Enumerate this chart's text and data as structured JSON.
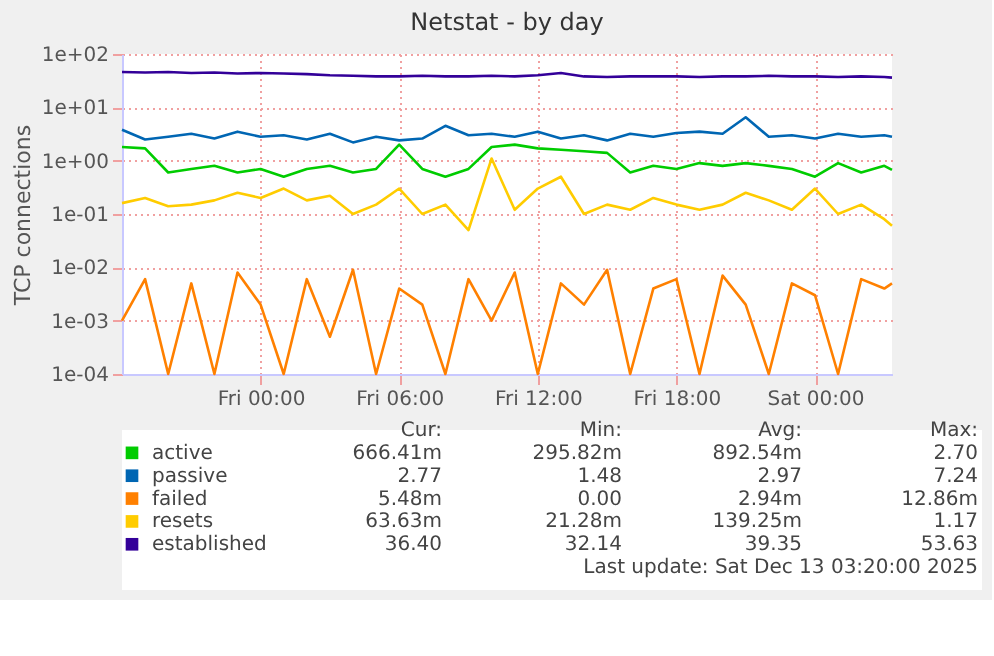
{
  "chart_data": {
    "type": "line",
    "title": "Netstat - by day",
    "ylabel": "TCP connections",
    "x": [
      "2025-12-11T18:00",
      "2025-12-11T19:00",
      "2025-12-11T20:00",
      "2025-12-11T21:00",
      "2025-12-11T22:00",
      "2025-12-11T23:00",
      "2025-12-12T00:00",
      "2025-12-12T01:00",
      "2025-12-12T02:00",
      "2025-12-12T03:00",
      "2025-12-12T04:00",
      "2025-12-12T05:00",
      "2025-12-12T06:00",
      "2025-12-12T07:00",
      "2025-12-12T08:00",
      "2025-12-12T09:00",
      "2025-12-12T10:00",
      "2025-12-12T11:00",
      "2025-12-12T12:00",
      "2025-12-12T13:00",
      "2025-12-12T14:00",
      "2025-12-12T15:00",
      "2025-12-12T16:00",
      "2025-12-12T17:00",
      "2025-12-12T18:00",
      "2025-12-12T19:00",
      "2025-12-12T20:00",
      "2025-12-12T21:00",
      "2025-12-12T22:00",
      "2025-12-12T23:00",
      "2025-12-13T00:00",
      "2025-12-13T01:00",
      "2025-12-13T02:00",
      "2025-12-13T03:00",
      "2025-12-13T03:20"
    ],
    "series": [
      {
        "name": "active",
        "color": "#00cc00",
        "values": [
          1.8,
          1.7,
          0.6,
          0.7,
          0.8,
          0.6,
          0.7,
          0.5,
          0.7,
          0.8,
          0.6,
          0.7,
          2.0,
          0.7,
          0.5,
          0.7,
          1.8,
          2.0,
          1.7,
          1.6,
          1.5,
          1.4,
          0.6,
          0.8,
          0.7,
          0.9,
          0.8,
          0.9,
          0.8,
          0.7,
          0.5,
          0.9,
          0.6,
          0.8,
          0.67
        ]
      },
      {
        "name": "passive",
        "color": "#0066b3",
        "values": [
          3.8,
          2.5,
          2.8,
          3.2,
          2.6,
          3.5,
          2.8,
          3.0,
          2.5,
          3.2,
          2.2,
          2.8,
          2.4,
          2.6,
          4.5,
          3.0,
          3.2,
          2.8,
          3.5,
          2.6,
          3.0,
          2.4,
          3.2,
          2.8,
          3.3,
          3.5,
          3.2,
          6.5,
          2.8,
          3.0,
          2.6,
          3.2,
          2.8,
          3.0,
          2.8
        ]
      },
      {
        "name": "failed",
        "color": "#ff8000",
        "values": [
          0.001,
          0.006,
          0.0001,
          0.005,
          0.0001,
          0.008,
          0.002,
          0.0001,
          0.006,
          0.0005,
          0.009,
          0.0001,
          0.004,
          0.002,
          0.0001,
          0.006,
          0.001,
          0.008,
          0.0001,
          0.005,
          0.002,
          0.009,
          0.0001,
          0.004,
          0.006,
          0.0001,
          0.007,
          0.002,
          0.0001,
          0.005,
          0.003,
          0.0001,
          0.006,
          0.004,
          0.005
        ]
      },
      {
        "name": "resets",
        "color": "#ffcc00",
        "values": [
          0.16,
          0.2,
          0.14,
          0.15,
          0.18,
          0.25,
          0.2,
          0.3,
          0.18,
          0.22,
          0.1,
          0.15,
          0.3,
          0.1,
          0.15,
          0.05,
          1.1,
          0.12,
          0.3,
          0.5,
          0.1,
          0.15,
          0.12,
          0.2,
          0.15,
          0.12,
          0.15,
          0.25,
          0.18,
          0.12,
          0.3,
          0.1,
          0.15,
          0.08,
          0.06
        ]
      },
      {
        "name": "established",
        "color": "#330099",
        "values": [
          46,
          45,
          46,
          44,
          45,
          43,
          44,
          43,
          42,
          40,
          39,
          38,
          38,
          39,
          38,
          38,
          39,
          38,
          40,
          44,
          38,
          37,
          38,
          38,
          38,
          37,
          38,
          38,
          39,
          38,
          38,
          37,
          38,
          37,
          36
        ]
      }
    ],
    "xlim": [
      "2025-12-11T18:00",
      "2025-12-13T03:20"
    ],
    "xticks": [
      {
        "value": "2025-12-12T00:00",
        "label": "Fri 00:00"
      },
      {
        "value": "2025-12-12T06:00",
        "label": "Fri 06:00"
      },
      {
        "value": "2025-12-12T12:00",
        "label": "Fri 12:00"
      },
      {
        "value": "2025-12-12T18:00",
        "label": "Fri 18:00"
      },
      {
        "value": "2025-12-13T00:00",
        "label": "Sat 00:00"
      }
    ],
    "ylim": [
      0.0001,
      100
    ],
    "log": "y",
    "yticks": [
      {
        "value": 0.0001,
        "label": "1e-04"
      },
      {
        "value": 0.001,
        "label": "1e-03"
      },
      {
        "value": 0.01,
        "label": "1e-02"
      },
      {
        "value": 0.1,
        "label": "1e-01"
      },
      {
        "value": 1,
        "label": "1e+00"
      },
      {
        "value": 10,
        "label": "1e+01"
      },
      {
        "value": 100,
        "label": "1e+02"
      }
    ],
    "grid": true,
    "legend": "bottom",
    "line_style": "solid",
    "marker": "none",
    "annotations": [
      "Cur:",
      "Min:",
      "Avg:",
      "Max:",
      "666.41m",
      "295.82m",
      "892.54m",
      "2.70",
      "2.77",
      "1.48",
      "2.97",
      "7.24",
      "5.48m",
      "0.00",
      "2.94m",
      "12.86m",
      "63.63m",
      "21.28m",
      "139.25m",
      "1.17",
      "36.40",
      "32.14",
      "39.35",
      "53.63",
      "Last update: Sat Dec 13 03:20:00 2025"
    ]
  }
}
